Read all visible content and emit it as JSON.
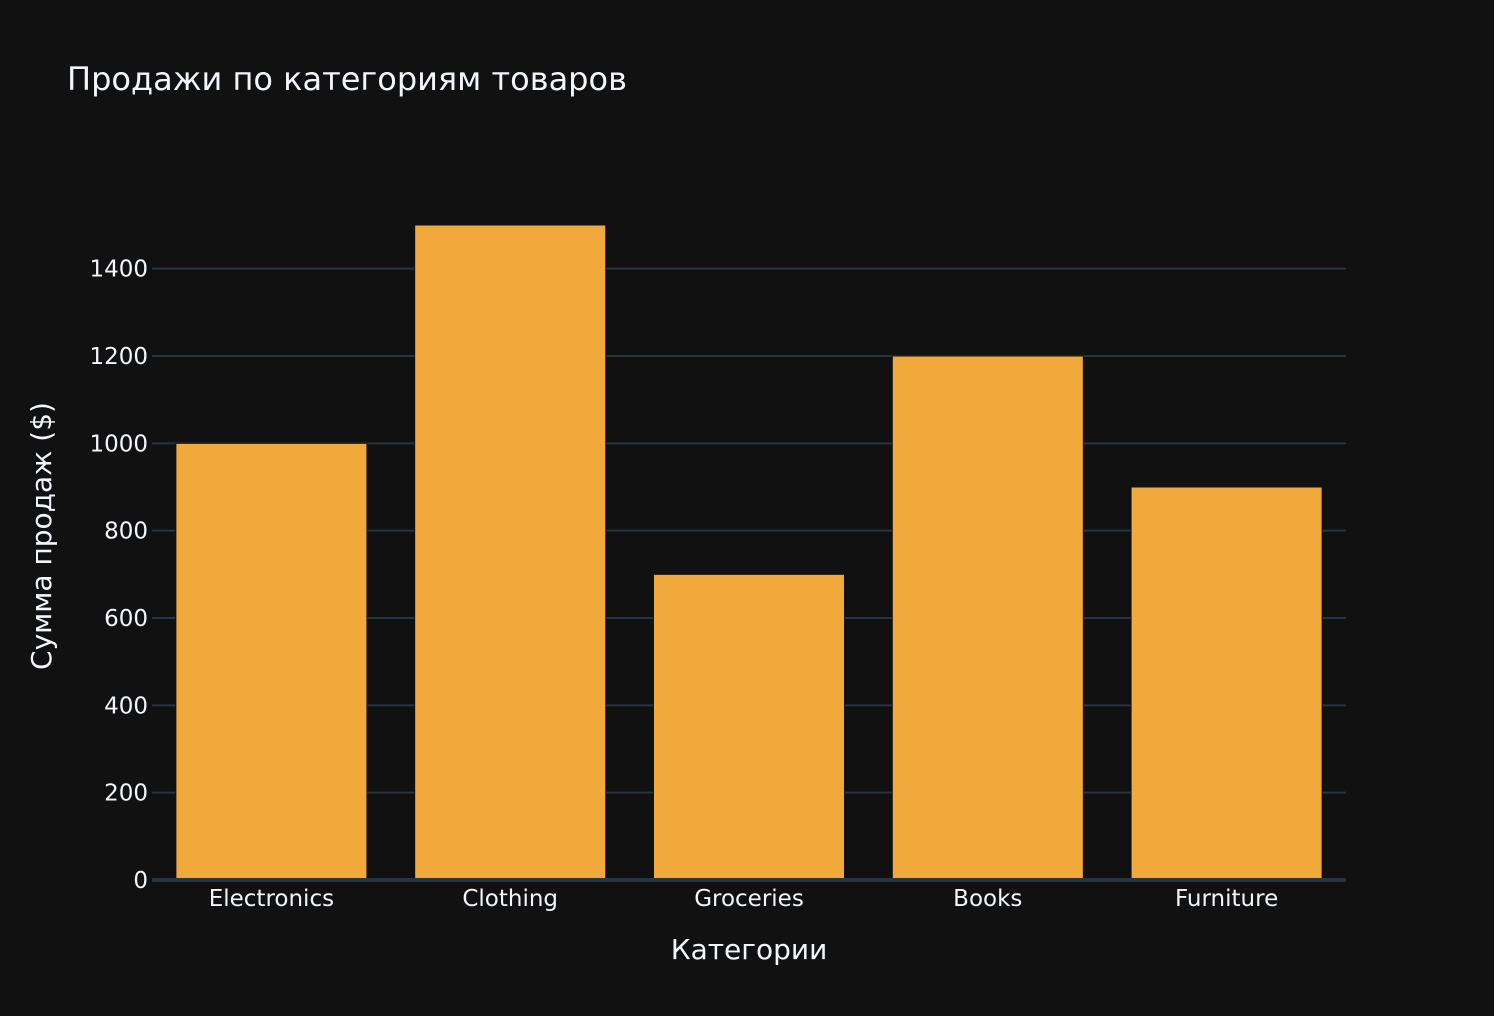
{
  "chart_data": {
    "type": "bar",
    "title": "Продажи по категориям товаров",
    "xlabel": "Категории",
    "ylabel": "Сумма продаж ($)",
    "categories": [
      "Electronics",
      "Clothing",
      "Groceries",
      "Books",
      "Furniture"
    ],
    "values": [
      1000,
      1500,
      700,
      1200,
      900
    ],
    "ylim": [
      0,
      1500
    ],
    "yticks": [
      0,
      200,
      400,
      600,
      800,
      1000,
      1200,
      1400
    ],
    "grid": true,
    "legend": "none",
    "colors": {
      "background": "#111111",
      "bar": "#F2A93B",
      "grid": "#283442",
      "text": "#f2f5fa"
    }
  }
}
